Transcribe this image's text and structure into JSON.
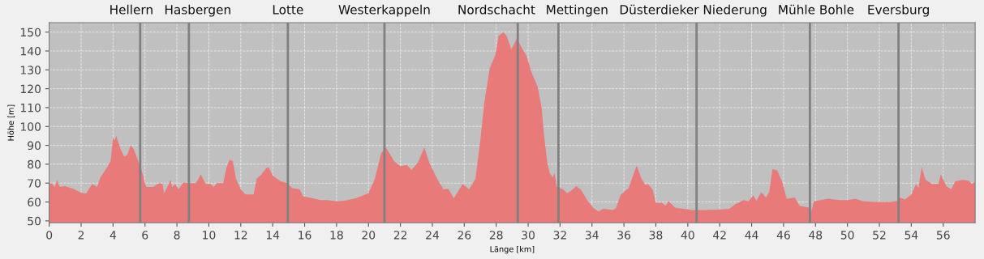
{
  "chart_data": {
    "type": "area",
    "xlabel": "Länge [km]",
    "ylabel": "Höhe [m]",
    "x": [
      0,
      0.2,
      0.35,
      0.5,
      0.65,
      1.0,
      1.5,
      2.0,
      2.3,
      2.7,
      3.0,
      3.2,
      3.6,
      3.85,
      4.0,
      4.1,
      4.2,
      4.5,
      4.7,
      4.9,
      5.1,
      5.3,
      5.6,
      5.85,
      6.0,
      6.1,
      6.5,
      6.9,
      7.1,
      7.2,
      7.4,
      7.6,
      7.7,
      7.9,
      8.1,
      8.4,
      8.7,
      9.2,
      9.5,
      9.8,
      10.1,
      10.3,
      10.5,
      10.9,
      11.1,
      11.3,
      11.5,
      11.7,
      12.0,
      12.3,
      12.8,
      13.0,
      13.3,
      13.6,
      13.75,
      14.0,
      14.5,
      14.9,
      15.2,
      15.7,
      15.9,
      16.3,
      17.0,
      17.4,
      18.0,
      18.5,
      19.2,
      20.0,
      20.4,
      20.8,
      21.1,
      21.6,
      22.0,
      22.4,
      22.7,
      23.1,
      23.5,
      23.8,
      24.3,
      24.7,
      25.0,
      25.35,
      25.9,
      26.3,
      26.7,
      27.0,
      27.25,
      27.6,
      27.95,
      28.15,
      28.45,
      28.65,
      28.95,
      29.3,
      29.6,
      29.9,
      30.2,
      30.6,
      30.85,
      31.0,
      31.2,
      31.35,
      31.55,
      31.65,
      31.8,
      32.2,
      32.45,
      32.7,
      33.0,
      33.3,
      33.7,
      34.1,
      34.4,
      34.7,
      35.3,
      35.5,
      35.8,
      36.3,
      36.5,
      36.8,
      37.1,
      37.35,
      37.5,
      37.8,
      38.0,
      38.4,
      38.6,
      38.8,
      39.2,
      39.8,
      40.3,
      41.0,
      42.0,
      42.6,
      43.0,
      43.5,
      43.8,
      44.1,
      44.3,
      44.6,
      44.9,
      45.1,
      45.3,
      45.6,
      45.9,
      46.2,
      46.7,
      47.0,
      47.6,
      47.7,
      47.9,
      48.5,
      48.8,
      49.5,
      50.0,
      50.5,
      51.0,
      52.0,
      52.7,
      53.2,
      53.3,
      53.6,
      54.0,
      54.3,
      54.45,
      54.65,
      54.9,
      55.3,
      55.7,
      55.85,
      56.2,
      56.5,
      56.75,
      57.2,
      57.6,
      57.8,
      58.0
    ],
    "series": [
      {
        "color": "#e87a7a",
        "values": [
          70,
          69.6,
          68,
          71.7,
          68,
          68.4,
          67,
          65,
          64.4,
          69.6,
          68,
          73,
          78,
          81.7,
          94,
          92.7,
          95,
          87.4,
          84,
          85,
          90,
          88,
          81,
          75,
          69.6,
          68,
          68,
          70,
          69.6,
          64.6,
          68,
          71.7,
          68,
          69.6,
          66.7,
          70.3,
          70,
          70,
          74.6,
          69.6,
          69.6,
          68,
          70,
          70,
          78,
          82.4,
          81.7,
          72.4,
          66.7,
          64,
          64,
          72.4,
          74.6,
          78,
          78.4,
          74,
          71,
          70,
          67.4,
          66.7,
          63,
          62.4,
          61,
          61,
          60.3,
          60.7,
          62,
          64.6,
          72.4,
          86,
          88.9,
          81.7,
          78.9,
          79.6,
          77,
          81,
          88.9,
          81,
          72.4,
          66.7,
          67,
          62,
          69.6,
          66.7,
          72.4,
          92.4,
          112.4,
          131,
          138,
          148,
          150,
          148,
          141,
          146.7,
          141.7,
          137.4,
          128.9,
          121,
          109.6,
          95,
          81,
          75.3,
          73,
          75.3,
          68,
          66.7,
          64.6,
          66,
          68.4,
          66.7,
          61,
          56.7,
          55,
          56.4,
          55.7,
          56.7,
          63.9,
          67.4,
          72.4,
          79.3,
          72.4,
          68.9,
          69.6,
          66.7,
          59.6,
          59.6,
          58,
          60.4,
          57,
          56.3,
          55.7,
          55.7,
          56,
          56.4,
          59,
          61,
          60.3,
          63.6,
          60.7,
          65.3,
          62.4,
          65.3,
          77.4,
          76.7,
          71,
          61.7,
          62.4,
          58,
          57,
          53.9,
          60.3,
          61.3,
          61.7,
          61,
          61,
          61.7,
          60.3,
          60,
          60,
          60.7,
          62.4,
          61.3,
          63.9,
          69.6,
          67.4,
          78.4,
          71.7,
          69.6,
          69.6,
          74.6,
          68.4,
          66.7,
          71,
          71.7,
          71.3,
          69.6,
          70.7
        ]
      }
    ],
    "xlim": [
      0,
      58
    ],
    "ylim": [
      49,
      155
    ],
    "xticks": [
      0,
      2,
      4,
      6,
      8,
      10,
      12,
      14,
      16,
      18,
      20,
      22,
      24,
      26,
      28,
      30,
      32,
      34,
      36,
      38,
      40,
      42,
      44,
      46,
      48,
      50,
      52,
      54,
      56
    ],
    "yticks": [
      50,
      60,
      70,
      80,
      90,
      100,
      110,
      120,
      130,
      140,
      150
    ],
    "grid": true,
    "ref_lines": [
      {
        "axis": "x",
        "value": 5.7,
        "label": "Hellern",
        "color": "#808080"
      },
      {
        "axis": "x",
        "value": 8.75,
        "label": "Hasbergen",
        "color": "#808080"
      },
      {
        "axis": "x",
        "value": 14.95,
        "label": "Lotte",
        "color": "#808080"
      },
      {
        "axis": "x",
        "value": 21.0,
        "label": "Westerkappeln",
        "color": "#808080"
      },
      {
        "axis": "x",
        "value": 29.35,
        "label": "Nordschacht",
        "color": "#808080"
      },
      {
        "axis": "x",
        "value": 31.9,
        "label": "Mettingen",
        "color": "#808080"
      },
      {
        "axis": "x",
        "value": 40.55,
        "label": "Düsterdieker Niederung",
        "color": "#808080"
      },
      {
        "axis": "x",
        "value": 47.65,
        "label": "Mühle Bohle",
        "color": "#808080"
      },
      {
        "axis": "x",
        "value": 53.2,
        "label": "Eversburg",
        "color": "#808080"
      }
    ]
  }
}
